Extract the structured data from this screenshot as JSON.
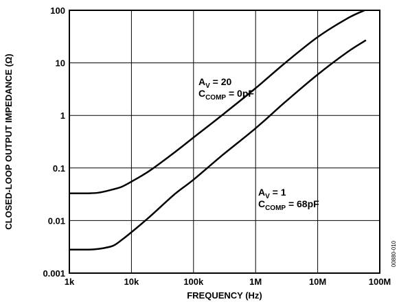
{
  "chart_data": {
    "type": "line",
    "x_scale": "log",
    "y_scale": "log",
    "xlim": [
      1000,
      100000000
    ],
    "ylim": [
      0.001,
      100
    ],
    "grid": true,
    "xlabel": "FREQUENCY (Hz)",
    "ylabel": "CLOSED-LOOP OUTPUT IMPEDANCE (Ω)",
    "x_ticks": [
      {
        "value": 1000,
        "label": "1k"
      },
      {
        "value": 10000,
        "label": "10k"
      },
      {
        "value": 100000,
        "label": "100k"
      },
      {
        "value": 1000000,
        "label": "1M"
      },
      {
        "value": 10000000,
        "label": "10M"
      },
      {
        "value": 100000000,
        "label": "100M"
      }
    ],
    "y_ticks": [
      {
        "value": 0.001,
        "label": "0.001"
      },
      {
        "value": 0.01,
        "label": "0.01"
      },
      {
        "value": 0.1,
        "label": "0.1"
      },
      {
        "value": 1,
        "label": "1"
      },
      {
        "value": 10,
        "label": "10"
      },
      {
        "value": 100,
        "label": "100"
      }
    ],
    "series": [
      {
        "points": [
          [
            1000,
            0.033
          ],
          [
            2000,
            0.033
          ],
          [
            3000,
            0.034
          ],
          [
            5000,
            0.039
          ],
          [
            7000,
            0.044
          ],
          [
            10000,
            0.055
          ],
          [
            20000,
            0.09
          ],
          [
            50000,
            0.2
          ],
          [
            100000,
            0.38
          ],
          [
            300000,
            1.05
          ],
          [
            1000000,
            3.3
          ],
          [
            3000000,
            10
          ],
          [
            10000000,
            31
          ],
          [
            30000000,
            70
          ],
          [
            57000000,
            100
          ]
        ]
      },
      {
        "points": [
          [
            1000,
            0.0028
          ],
          [
            2000,
            0.0028
          ],
          [
            3000,
            0.0029
          ],
          [
            5000,
            0.0033
          ],
          [
            7000,
            0.0043
          ],
          [
            10000,
            0.006
          ],
          [
            20000,
            0.012
          ],
          [
            50000,
            0.032
          ],
          [
            100000,
            0.06
          ],
          [
            300000,
            0.18
          ],
          [
            1000000,
            0.57
          ],
          [
            3000000,
            1.8
          ],
          [
            10000000,
            6
          ],
          [
            30000000,
            16
          ],
          [
            60000000,
            27
          ]
        ]
      }
    ],
    "annotations": [
      {
        "lines": [
          {
            "main": "A",
            "sub": "V",
            "rest": " = 20"
          },
          {
            "main": "C",
            "sub": "COMP",
            "rest": " = 0pF"
          }
        ],
        "x": 120000,
        "y": 3.8
      },
      {
        "lines": [
          {
            "main": "A",
            "sub": "V",
            "rest": " = 1"
          },
          {
            "main": "C",
            "sub": "COMP",
            "rest": " = 68pF"
          }
        ],
        "x": 1100000,
        "y": 0.03
      }
    ],
    "side_code": "00880-010"
  }
}
